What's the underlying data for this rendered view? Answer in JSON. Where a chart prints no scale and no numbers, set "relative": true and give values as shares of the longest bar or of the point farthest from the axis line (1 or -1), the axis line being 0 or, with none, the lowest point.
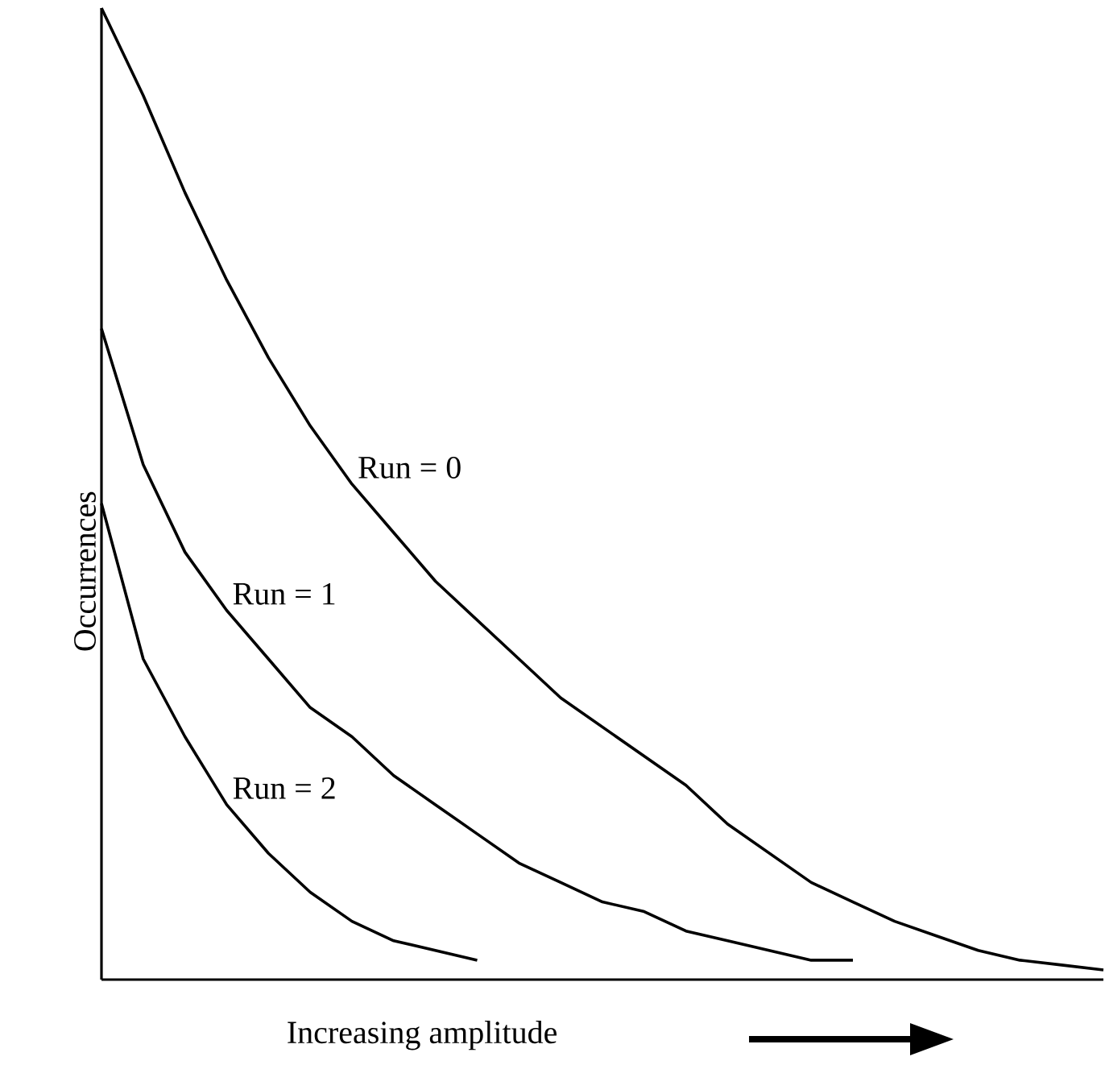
{
  "chart_data": {
    "type": "line",
    "relative": true,
    "xlabel": "Increasing amplitude",
    "ylabel": "Occurrences",
    "legend": false,
    "categories": [
      null,
      null,
      null,
      null,
      null,
      null,
      null,
      null,
      null,
      null,
      null,
      null,
      null,
      null,
      null,
      null,
      null,
      null,
      null,
      null,
      null,
      null,
      null,
      null,
      null
    ],
    "series": [
      {
        "name": "Run = 0",
        "color": "#000000",
        "values": [
          1.0,
          0.91,
          0.81,
          0.72,
          0.64,
          0.57,
          0.51,
          0.46,
          0.41,
          0.37,
          0.33,
          0.29,
          0.26,
          0.23,
          0.2,
          0.16,
          0.13,
          0.1,
          0.08,
          0.06,
          0.045,
          0.03,
          0.02,
          0.015,
          0.01
        ]
      },
      {
        "name": "Run = 1",
        "color": "#000000",
        "values": [
          0.67,
          0.53,
          0.44,
          0.38,
          0.33,
          0.28,
          0.25,
          0.21,
          0.18,
          0.15,
          0.12,
          0.1,
          0.08,
          0.07,
          0.05,
          0.04,
          0.03,
          0.02,
          0.02,
          null,
          null,
          null,
          null,
          null,
          null
        ]
      },
      {
        "name": "Run = 2",
        "color": "#000000",
        "values": [
          0.49,
          0.33,
          0.25,
          0.18,
          0.13,
          0.09,
          0.06,
          0.04,
          0.03,
          0.02,
          null,
          null,
          null,
          null,
          null,
          null,
          null,
          null,
          null,
          null,
          null,
          null,
          null,
          null,
          null
        ]
      }
    ]
  }
}
